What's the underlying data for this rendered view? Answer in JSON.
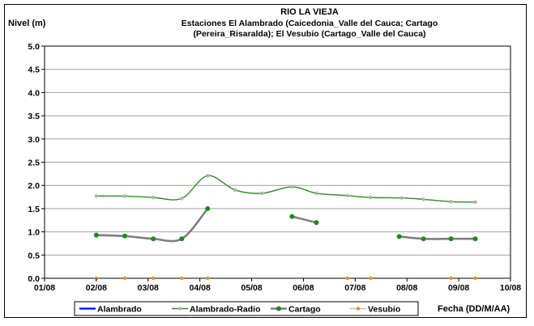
{
  "chart_data": {
    "type": "line",
    "title": "RIO LA VIEJA",
    "subtitle_lines": [
      "Estaciones El Alambrado (Caicedonia_Valle del Cauca; Cartago",
      "(Pereira_Risaralda);  El Vesubio (Cartago_Valle del Cauca)"
    ],
    "ylabel": "Nivel (m)",
    "xlabel": "Fecha (DD/M/AA)",
    "ylim": [
      0,
      5
    ],
    "yticks": [
      "0.0",
      "0.5",
      "1.0",
      "1.5",
      "2.0",
      "2.5",
      "3.0",
      "3.5",
      "4.0",
      "4.5",
      "5.0"
    ],
    "xlim": [
      0,
      9
    ],
    "xticks": [
      "01/08",
      "02/08",
      "03/08",
      "04/08",
      "05/08",
      "06/08",
      "07/08",
      "08/08",
      "09/08",
      "10/08"
    ],
    "grid": true,
    "legend_position": "bottom",
    "series": [
      {
        "name": "Alambrado",
        "color": "#0000ff",
        "segments": []
      },
      {
        "name": "Alambrado-Radio",
        "color": "#2e8b22",
        "marker_color": "#b0b0b0",
        "smooth": true,
        "segments": [
          [
            [
              1.0,
              1.77
            ],
            [
              1.55,
              1.77
            ],
            [
              2.1,
              1.74
            ],
            [
              2.65,
              1.72
            ],
            [
              3.15,
              2.21
            ],
            [
              3.68,
              1.9
            ],
            [
              4.2,
              1.83
            ],
            [
              4.78,
              1.97
            ],
            [
              5.25,
              1.83
            ],
            [
              5.85,
              1.78
            ],
            [
              6.3,
              1.74
            ],
            [
              6.9,
              1.73
            ],
            [
              7.32,
              1.7
            ],
            [
              7.85,
              1.65
            ],
            [
              8.32,
              1.64
            ]
          ]
        ]
      },
      {
        "name": "Cartago",
        "color": "#7f7f7f",
        "marker_color": "#1a8a1a",
        "smooth": true,
        "segments": [
          [
            [
              1.0,
              0.93
            ],
            [
              1.55,
              0.91
            ],
            [
              2.1,
              0.85
            ],
            [
              2.65,
              0.85
            ],
            [
              3.15,
              1.5
            ]
          ],
          [
            [
              4.78,
              1.33
            ],
            [
              5.25,
              1.2
            ]
          ],
          [
            [
              6.85,
              0.9
            ],
            [
              7.32,
              0.85
            ],
            [
              7.85,
              0.85
            ],
            [
              8.32,
              0.85
            ]
          ]
        ]
      },
      {
        "name": "Vesubio",
        "color": "#c0c0c0",
        "marker_color": "#f08c1e",
        "lines": false,
        "segments": [
          [
            [
              1.0,
              0.0
            ],
            [
              1.55,
              0.0
            ],
            [
              2.1,
              0.0
            ],
            [
              2.65,
              0.0
            ],
            [
              3.15,
              0.0
            ],
            [
              5.85,
              0.0
            ],
            [
              6.3,
              0.0
            ],
            [
              7.85,
              0.0
            ],
            [
              8.32,
              0.0
            ]
          ]
        ]
      }
    ]
  }
}
